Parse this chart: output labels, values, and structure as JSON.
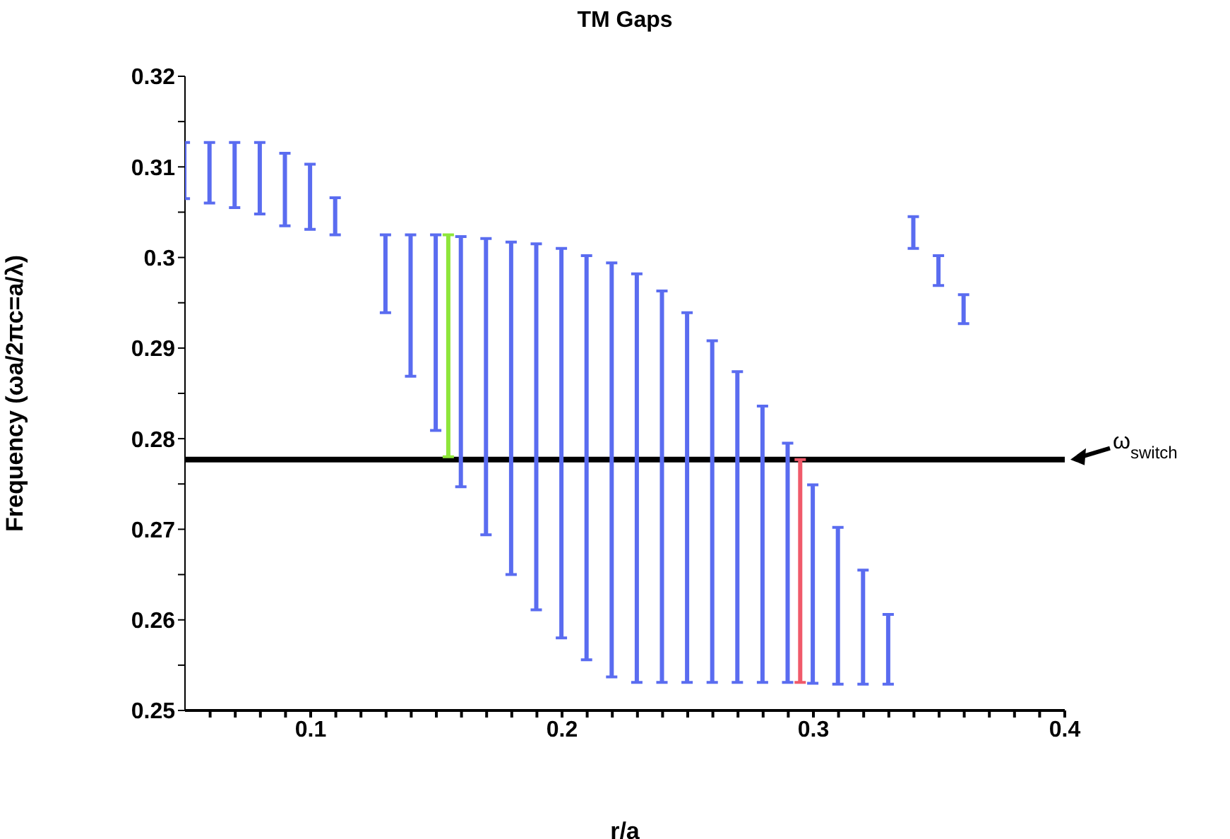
{
  "chart_data": {
    "type": "bar",
    "title": "TM Gaps",
    "xlabel": "r/a",
    "ylabel": "Frequency (ωa/2πc=a/λ)",
    "xlim": [
      0.05,
      0.4
    ],
    "xticks": [
      {
        "value": 0.06,
        "label": null
      },
      {
        "value": 0.07,
        "label": null
      },
      {
        "value": 0.08,
        "label": null
      },
      {
        "value": 0.09,
        "label": null
      },
      0.1,
      {
        "value": 0.11,
        "label": null
      },
      {
        "value": 0.12,
        "label": null
      },
      {
        "value": 0.13,
        "label": null
      },
      {
        "value": 0.14,
        "label": null
      },
      {
        "value": 0.15,
        "label": null
      },
      {
        "value": 0.16,
        "label": null
      },
      {
        "value": 0.17,
        "label": null
      },
      {
        "value": 0.18,
        "label": null
      },
      {
        "value": 0.19,
        "label": null
      },
      0.2,
      {
        "value": 0.21,
        "label": null
      },
      {
        "value": 0.22,
        "label": null
      },
      {
        "value": 0.23,
        "label": null
      },
      {
        "value": 0.24,
        "label": null
      },
      {
        "value": 0.25,
        "label": null
      },
      {
        "value": 0.26,
        "label": null
      },
      {
        "value": 0.27,
        "label": null
      },
      {
        "value": 0.28,
        "label": null
      },
      {
        "value": 0.29,
        "label": null
      },
      0.3,
      {
        "value": 0.31,
        "label": null
      },
      {
        "value": 0.32,
        "label": null
      },
      {
        "value": 0.33,
        "label": null
      },
      {
        "value": 0.34,
        "label": null
      },
      {
        "value": 0.35,
        "label": null
      },
      {
        "value": 0.36,
        "label": null
      },
      {
        "value": 0.37,
        "label": null
      },
      {
        "value": 0.38,
        "label": null
      },
      {
        "value": 0.39,
        "label": null
      },
      0.4
    ],
    "ylim": [
      0.25,
      0.32
    ],
    "yticks": [
      0.25,
      {
        "value": 0.255,
        "label": null
      },
      0.26,
      {
        "value": 0.265,
        "label": null
      },
      0.27,
      {
        "value": 0.275,
        "label": null
      },
      0.28,
      {
        "value": 0.285,
        "label": null
      },
      0.29,
      {
        "value": 0.295,
        "label": null
      },
      0.3,
      {
        "value": 0.305,
        "label": null
      },
      0.31,
      {
        "value": 0.315,
        "label": null
      },
      0.32
    ],
    "series": [
      {
        "color": "#5a6cf0",
        "x": [
          0.05,
          0.06,
          0.07,
          0.08,
          0.09,
          0.1,
          0.11,
          0.13,
          0.14,
          0.15,
          0.16,
          0.17,
          0.18,
          0.19,
          0.2,
          0.21,
          0.22,
          0.23,
          0.24,
          0.25,
          0.26,
          0.27,
          0.28,
          0.29,
          0.3,
          0.31,
          0.32,
          0.33,
          0.34,
          0.35,
          0.36
        ],
        "base": [
          0.3065,
          0.306,
          0.3055,
          0.3048,
          0.3035,
          0.3031,
          0.3025,
          0.2939,
          0.2869,
          0.2809,
          0.2747,
          0.2694,
          0.265,
          0.2611,
          0.258,
          0.2556,
          0.2537,
          0.2531,
          0.2531,
          0.2531,
          0.2531,
          0.2531,
          0.2531,
          0.2531,
          0.253,
          0.2529,
          0.2529,
          0.2529,
          0.301,
          0.2969,
          0.2927
        ],
        "values": [
          0.0062,
          0.0067,
          0.0072,
          0.0079,
          0.008,
          0.0072,
          0.0041,
          0.0086,
          0.0156,
          0.0216,
          0.0276,
          0.0327,
          0.0367,
          0.0404,
          0.043,
          0.0446,
          0.0457,
          0.0451,
          0.0432,
          0.0408,
          0.0377,
          0.0343,
          0.0305,
          0.0264,
          0.0219,
          0.0173,
          0.0126,
          0.0077,
          0.0035,
          0.0033,
          0.0032
        ]
      },
      {
        "color": "#8ee63a",
        "x": [
          0.155
        ],
        "base": [
          0.278
        ],
        "values": [
          0.0245
        ]
      },
      {
        "color": "#f05a6a",
        "x": [
          0.295
        ],
        "base": [
          0.2531
        ],
        "values": [
          0.0246
        ]
      }
    ],
    "ref_lines": [
      {
        "axis": "y",
        "value": 0.2777,
        "label": "ω$_{switch}$",
        "color": "#000000"
      }
    ]
  }
}
